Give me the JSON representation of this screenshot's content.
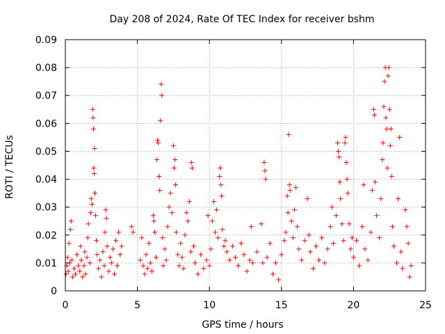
{
  "chart_data": {
    "type": "scatter",
    "title": "Day 208 of 2024, Rate Of TEC Index for receiver bshm",
    "xlabel": "GPS time / hours",
    "ylabel": "ROTI / TECUs",
    "xlim": [
      0,
      25
    ],
    "ylim": [
      0,
      0.09
    ],
    "xticks": [
      0,
      5,
      10,
      15,
      20,
      25
    ],
    "xtick_labels": [
      "0",
      "5",
      "10",
      "15",
      "20",
      "25"
    ],
    "yticks": [
      0,
      0.01,
      0.02,
      0.03,
      0.04,
      0.05,
      0.06,
      0.07,
      0.08,
      0.09
    ],
    "ytick_labels": [
      "0",
      "0.01",
      "0.02",
      "0.03",
      "0.04",
      "0.05",
      "0.06",
      "0.07",
      "0.08",
      "0.09"
    ],
    "grid": true,
    "marker": "plus",
    "series": [
      {
        "name": "ROTI",
        "color": "#ff0000",
        "points": [
          [
            0.05,
            0.006
          ],
          [
            0.1,
            0.009
          ],
          [
            0.15,
            0.012
          ],
          [
            0.2,
            0.007
          ],
          [
            0.25,
            0.017
          ],
          [
            0.3,
            0.01
          ],
          [
            0.35,
            0.022
          ],
          [
            0.4,
            0.025
          ],
          [
            0.45,
            0.011
          ],
          [
            0.5,
            0.005
          ],
          [
            0.6,
            0.008
          ],
          [
            0.7,
            0.006
          ],
          [
            0.8,
            0.013
          ],
          [
            0.9,
            0.009
          ],
          [
            1.0,
            0.007
          ],
          [
            1.05,
            0.016
          ],
          [
            1.1,
            0.011
          ],
          [
            1.2,
            0.005
          ],
          [
            1.3,
            0.009
          ],
          [
            1.35,
            0.014
          ],
          [
            1.4,
            0.006
          ],
          [
            1.5,
            0.012
          ],
          [
            1.55,
            0.019
          ],
          [
            1.6,
            0.024
          ],
          [
            1.7,
            0.01
          ],
          [
            1.75,
            0.028
          ],
          [
            1.8,
            0.033
          ],
          [
            1.85,
            0.031
          ],
          [
            1.9,
            0.065
          ],
          [
            1.92,
            0.062
          ],
          [
            1.95,
            0.058
          ],
          [
            1.97,
            0.044
          ],
          [
            2.0,
            0.042
          ],
          [
            2.02,
            0.051
          ],
          [
            2.05,
            0.035
          ],
          [
            2.1,
            0.027
          ],
          [
            2.15,
            0.018
          ],
          [
            2.2,
            0.013
          ],
          [
            2.3,
            0.008
          ],
          [
            2.4,
            0.011
          ],
          [
            2.5,
            0.005
          ],
          [
            2.6,
            0.014
          ],
          [
            2.7,
            0.009
          ],
          [
            2.75,
            0.021
          ],
          [
            2.8,
            0.029
          ],
          [
            2.85,
            0.026
          ],
          [
            2.9,
            0.016
          ],
          [
            3.0,
            0.007
          ],
          [
            3.1,
            0.012
          ],
          [
            3.2,
            0.01
          ],
          [
            3.3,
            0.015
          ],
          [
            3.4,
            0.006
          ],
          [
            3.5,
            0.018
          ],
          [
            3.6,
            0.009
          ],
          [
            3.7,
            0.021
          ],
          [
            3.8,
            0.013
          ],
          [
            3.9,
            0.016
          ],
          [
            4.6,
            0.023
          ],
          [
            4.7,
            0.021
          ],
          [
            5.2,
            0.011
          ],
          [
            5.3,
            0.019
          ],
          [
            5.4,
            0.009
          ],
          [
            5.5,
            0.006
          ],
          [
            5.6,
            0.013
          ],
          [
            5.7,
            0.008
          ],
          [
            5.8,
            0.017
          ],
          [
            5.9,
            0.01
          ],
          [
            6.0,
            0.007
          ],
          [
            6.1,
            0.027
          ],
          [
            6.15,
            0.025
          ],
          [
            6.2,
            0.021
          ],
          [
            6.3,
            0.012
          ],
          [
            6.35,
            0.047
          ],
          [
            6.4,
            0.054
          ],
          [
            6.45,
            0.053
          ],
          [
            6.5,
            0.041
          ],
          [
            6.55,
            0.036
          ],
          [
            6.6,
            0.061
          ],
          [
            6.65,
            0.074
          ],
          [
            6.7,
            0.07
          ],
          [
            6.75,
            0.019
          ],
          [
            6.8,
            0.009
          ],
          [
            6.9,
            0.015
          ],
          [
            7.0,
            0.011
          ],
          [
            7.1,
            0.023
          ],
          [
            7.2,
            0.03
          ],
          [
            7.3,
            0.035
          ],
          [
            7.4,
            0.028
          ],
          [
            7.5,
            0.052
          ],
          [
            7.55,
            0.044
          ],
          [
            7.6,
            0.047
          ],
          [
            7.65,
            0.038
          ],
          [
            7.7,
            0.021
          ],
          [
            7.8,
            0.013
          ],
          [
            7.9,
            0.009
          ],
          [
            8.0,
            0.017
          ],
          [
            8.1,
            0.012
          ],
          [
            8.2,
            0.008
          ],
          [
            8.3,
            0.02
          ],
          [
            8.4,
            0.028
          ],
          [
            8.5,
            0.025
          ],
          [
            8.6,
            0.032
          ],
          [
            8.7,
            0.014
          ],
          [
            8.75,
            0.046
          ],
          [
            8.8,
            0.044
          ],
          [
            8.9,
            0.016
          ],
          [
            9.0,
            0.01
          ],
          [
            9.2,
            0.006
          ],
          [
            9.4,
            0.013
          ],
          [
            9.6,
            0.008
          ],
          [
            9.8,
            0.011
          ],
          [
            9.9,
            0.027
          ],
          [
            10.0,
            0.009
          ],
          [
            10.1,
            0.015
          ],
          [
            10.2,
            0.025
          ],
          [
            10.3,
            0.032
          ],
          [
            10.4,
            0.021
          ],
          [
            10.5,
            0.029
          ],
          [
            10.6,
            0.019
          ],
          [
            10.7,
            0.041
          ],
          [
            10.75,
            0.044
          ],
          [
            10.8,
            0.038
          ],
          [
            10.85,
            0.034
          ],
          [
            10.9,
            0.022
          ],
          [
            11.0,
            0.016
          ],
          [
            11.1,
            0.018
          ],
          [
            11.2,
            0.014
          ],
          [
            11.4,
            0.011
          ],
          [
            11.6,
            0.016
          ],
          [
            11.8,
            0.012
          ],
          [
            12.0,
            0.009
          ],
          [
            12.2,
            0.017
          ],
          [
            12.4,
            0.013
          ],
          [
            12.6,
            0.007
          ],
          [
            12.8,
            0.011
          ],
          [
            12.9,
            0.023
          ],
          [
            13.0,
            0.01
          ],
          [
            13.3,
            0.014
          ],
          [
            13.6,
            0.024
          ],
          [
            13.7,
            0.01
          ],
          [
            13.8,
            0.046
          ],
          [
            13.85,
            0.043
          ],
          [
            13.9,
            0.04
          ],
          [
            14.0,
            0.012
          ],
          [
            14.2,
            0.017
          ],
          [
            14.4,
            0.006
          ],
          [
            14.6,
            0.01
          ],
          [
            14.8,
            0.004
          ],
          [
            15.0,
            0.013
          ],
          [
            15.2,
            0.018
          ],
          [
            15.3,
            0.021
          ],
          [
            15.4,
            0.034
          ],
          [
            15.45,
            0.028
          ],
          [
            15.5,
            0.056
          ],
          [
            15.55,
            0.038
          ],
          [
            15.6,
            0.036
          ],
          [
            15.7,
            0.025
          ],
          [
            15.8,
            0.019
          ],
          [
            15.9,
            0.029
          ],
          [
            16.0,
            0.037
          ],
          [
            16.1,
            0.023
          ],
          [
            16.2,
            0.015
          ],
          [
            16.4,
            0.011
          ],
          [
            16.6,
            0.018
          ],
          [
            16.8,
            0.033
          ],
          [
            16.9,
            0.02
          ],
          [
            17.0,
            0.014
          ],
          [
            17.2,
            0.008
          ],
          [
            17.4,
            0.016
          ],
          [
            17.6,
            0.011
          ],
          [
            17.8,
            0.019
          ],
          [
            18.0,
            0.01
          ],
          [
            18.2,
            0.015
          ],
          [
            18.4,
            0.023
          ],
          [
            18.5,
            0.03
          ],
          [
            18.6,
            0.017
          ],
          [
            18.8,
            0.027
          ],
          [
            18.9,
            0.053
          ],
          [
            18.95,
            0.05
          ],
          [
            19.0,
            0.048
          ],
          [
            19.05,
            0.039
          ],
          [
            19.1,
            0.033
          ],
          [
            19.2,
            0.024
          ],
          [
            19.3,
            0.018
          ],
          [
            19.4,
            0.053
          ],
          [
            19.45,
            0.055
          ],
          [
            19.5,
            0.046
          ],
          [
            19.55,
            0.04
          ],
          [
            19.6,
            0.035
          ],
          [
            19.7,
            0.024
          ],
          [
            19.8,
            0.015
          ],
          [
            19.9,
            0.019
          ],
          [
            20.0,
            0.012
          ],
          [
            20.2,
            0.018
          ],
          [
            20.4,
            0.009
          ],
          [
            20.6,
            0.023
          ],
          [
            20.7,
            0.038
          ],
          [
            20.8,
            0.015
          ],
          [
            21.0,
            0.011
          ],
          [
            21.2,
            0.021
          ],
          [
            21.3,
            0.036
          ],
          [
            21.4,
            0.065
          ],
          [
            21.45,
            0.063
          ],
          [
            21.5,
            0.039
          ],
          [
            21.6,
            0.027
          ],
          [
            21.8,
            0.019
          ],
          [
            21.9,
            0.033
          ],
          [
            22.0,
            0.047
          ],
          [
            22.05,
            0.053
          ],
          [
            22.1,
            0.066
          ],
          [
            22.15,
            0.075
          ],
          [
            22.2,
            0.08
          ],
          [
            22.25,
            0.062
          ],
          [
            22.3,
            0.058
          ],
          [
            22.35,
            0.044
          ],
          [
            22.4,
            0.077
          ],
          [
            22.45,
            0.08
          ],
          [
            22.5,
            0.065
          ],
          [
            22.55,
            0.052
          ],
          [
            22.6,
            0.058
          ],
          [
            22.65,
            0.041
          ],
          [
            22.7,
            0.023
          ],
          [
            22.8,
            0.016
          ],
          [
            23.0,
            0.01
          ],
          [
            23.1,
            0.033
          ],
          [
            23.2,
            0.055
          ],
          [
            23.3,
            0.014
          ],
          [
            23.4,
            0.008
          ],
          [
            23.6,
            0.029
          ],
          [
            23.7,
            0.023
          ],
          [
            23.8,
            0.017
          ],
          [
            23.9,
            0.005
          ],
          [
            24.0,
            0.009
          ]
        ]
      }
    ]
  }
}
